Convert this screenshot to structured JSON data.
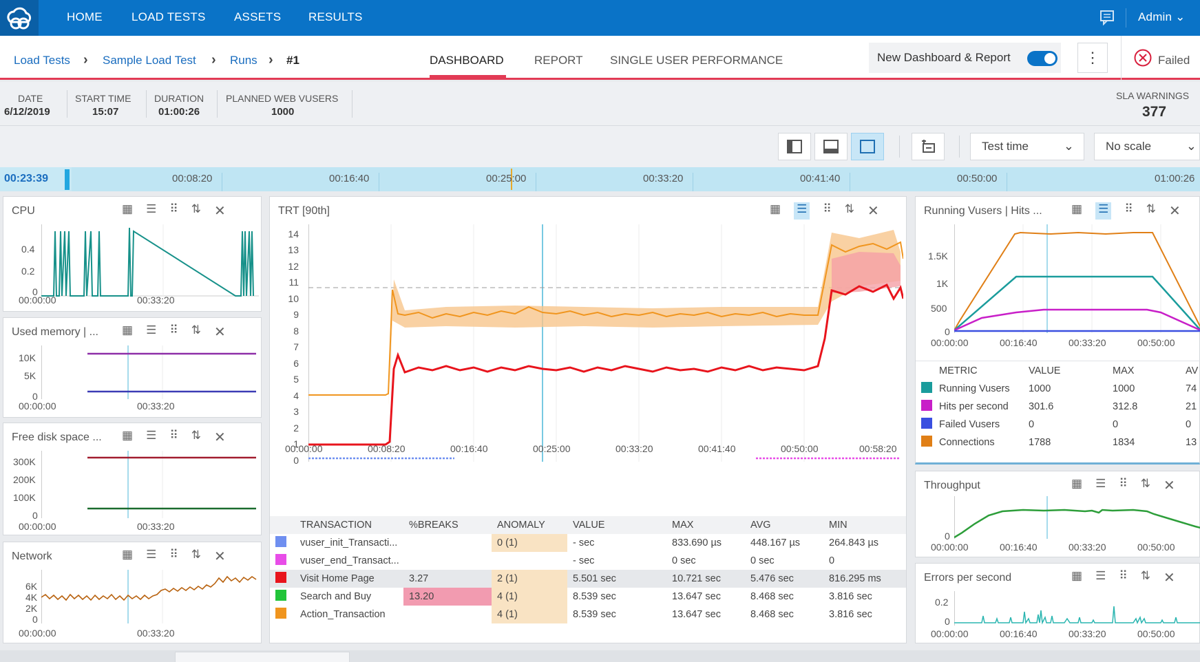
{
  "nav": {
    "items": [
      "HOME",
      "LOAD TESTS",
      "ASSETS",
      "RESULTS"
    ],
    "user": "Admin"
  },
  "breadcrumb": {
    "items": [
      "Load Tests",
      "Sample Load Test",
      "Runs"
    ],
    "current": "#1"
  },
  "tabs": [
    "DASHBOARD",
    "REPORT",
    "SINGLE USER PERFORMANCE"
  ],
  "toggle": {
    "label": "New Dashboard & Report",
    "on": true
  },
  "status": "Failed",
  "info": {
    "date_label": "DATE",
    "date": "6/12/2019",
    "start_label": "START TIME",
    "start": "15:07",
    "duration_label": "DURATION",
    "duration": "01:00:26",
    "vusers_label": "PLANNED WEB VUSERS",
    "vusers": "1000",
    "sla_label": "SLA WARNINGS",
    "sla": "377"
  },
  "toolbar": {
    "time_mode": "Test time",
    "scale": "No scale"
  },
  "timeline": {
    "current": "00:23:39",
    "ticks": [
      "00:08:20",
      "00:16:40",
      "00:25:00",
      "00:33:20",
      "00:41:40",
      "00:50:00",
      "01:00:26"
    ]
  },
  "panels": {
    "cpu": {
      "title": "CPU",
      "yticks": [
        "0.4",
        "0.2",
        "0"
      ],
      "xticks": [
        "00:00:00",
        "00:33:20"
      ]
    },
    "memory": {
      "title": "Used memory | ...",
      "yticks": [
        "10K",
        "5K",
        "0"
      ],
      "xticks": [
        "00:00:00",
        "00:33:20"
      ]
    },
    "disk": {
      "title": "Free disk space ...",
      "yticks": [
        "300K",
        "200K",
        "100K",
        "0"
      ],
      "xticks": [
        "00:00:00",
        "00:33:20"
      ]
    },
    "network": {
      "title": "Network",
      "yticks": [
        "6K",
        "4K",
        "2K",
        "0"
      ],
      "xticks": [
        "00:00:00",
        "00:33:20"
      ]
    },
    "trt": {
      "title": "TRT [90th]",
      "yticks": [
        "14",
        "13",
        "12",
        "11",
        "10",
        "9",
        "8",
        "7",
        "6",
        "5",
        "4",
        "3",
        "2",
        "1",
        "0"
      ],
      "xticks": [
        "00:00:00",
        "00:08:20",
        "00:16:40",
        "00:25:00",
        "00:33:20",
        "00:41:40",
        "00:50:00",
        "00:58:20"
      ]
    },
    "vusers": {
      "title": "Running Vusers | Hits ...",
      "yticks": [
        "1.5K",
        "1K",
        "500",
        "0"
      ],
      "xticks": [
        "00:00:00",
        "00:16:40",
        "00:33:20",
        "00:50:00"
      ]
    },
    "throughput": {
      "title": "Throughput",
      "yticks": [
        "0"
      ],
      "xticks": [
        "00:00:00",
        "00:16:40",
        "00:33:20",
        "00:50:00"
      ]
    },
    "errors": {
      "title": "Errors per second",
      "yticks": [
        "0.2",
        "0"
      ],
      "xticks": [
        "00:00:00",
        "00:16:40",
        "00:33:20",
        "00:50:00"
      ]
    }
  },
  "metrics_table": {
    "headers": [
      "METRIC",
      "VALUE",
      "MAX",
      "AV"
    ],
    "rows": [
      {
        "color": "#1a9c9c",
        "name": "Running Vusers",
        "value": "1000",
        "max": "1000",
        "avg": "74"
      },
      {
        "color": "#c81fc8",
        "name": "Hits per second",
        "value": "301.6",
        "max": "312.8",
        "avg": "21"
      },
      {
        "color": "#3a4fe0",
        "name": "Failed Vusers",
        "value": "0",
        "max": "0",
        "avg": "0"
      },
      {
        "color": "#e07f16",
        "name": "Connections",
        "value": "1788",
        "max": "1834",
        "avg": "13"
      }
    ]
  },
  "transactions_table": {
    "headers": [
      "TRANSACTION",
      "%BREAKS",
      "ANOMALY",
      "VALUE",
      "MAX",
      "AVG",
      "MIN"
    ],
    "rows": [
      {
        "color": "#6f8ff0",
        "name": "vuser_init_Transacti...",
        "breaks": "",
        "anomaly": "0 (1)",
        "value": "- sec",
        "max": "833.690 µs",
        "avg": "448.167 µs",
        "min": "264.843 µs"
      },
      {
        "color": "#e84de8",
        "name": "vuser_end_Transact...",
        "breaks": "",
        "anomaly": "",
        "value": "- sec",
        "max": "0 sec",
        "avg": "0 sec",
        "min": "0"
      },
      {
        "color": "#e8141c",
        "name": "Visit Home Page",
        "breaks": "3.27",
        "anomaly": "2 (1)",
        "value": "5.501 sec",
        "max": "10.721 sec",
        "avg": "5.476 sec",
        "min": "816.295 ms"
      },
      {
        "color": "#22c43a",
        "name": "Search and Buy",
        "breaks": "13.20",
        "anomaly": "4 (1)",
        "value": "8.539 sec",
        "max": "13.647 sec",
        "avg": "8.468 sec",
        "min": "3.816 sec"
      },
      {
        "color": "#f0951e",
        "name": "Action_Transaction",
        "breaks": "",
        "anomaly": "4 (1)",
        "value": "8.539 sec",
        "max": "13.647 sec",
        "avg": "8.468 sec",
        "min": "3.816 sec"
      }
    ]
  }
}
